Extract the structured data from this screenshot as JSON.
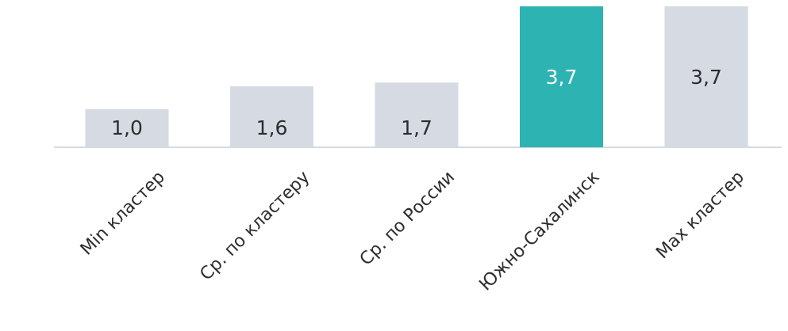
{
  "chart_data": {
    "type": "bar",
    "title": "",
    "xlabel": "",
    "ylabel": "",
    "categories": [
      "Min кластер",
      "Ср. по кластеру",
      "Ср. по России",
      "Южно-Сахалинск",
      "Max кластер"
    ],
    "values": [
      1.0,
      1.6,
      1.7,
      3.7,
      3.7
    ],
    "value_labels": [
      "1,0",
      "1,6",
      "1,7",
      "3,7",
      "3,7"
    ],
    "highlight_index": 3,
    "ylim": [
      0,
      3.7
    ],
    "grid": false,
    "legend": "none",
    "colors": {
      "default_bar": "#d5dae3",
      "highlight_bar": "#2eb3b3",
      "baseline": "#c9ced6",
      "text": "#2d2d2d",
      "highlight_text": "#ffffff"
    }
  }
}
